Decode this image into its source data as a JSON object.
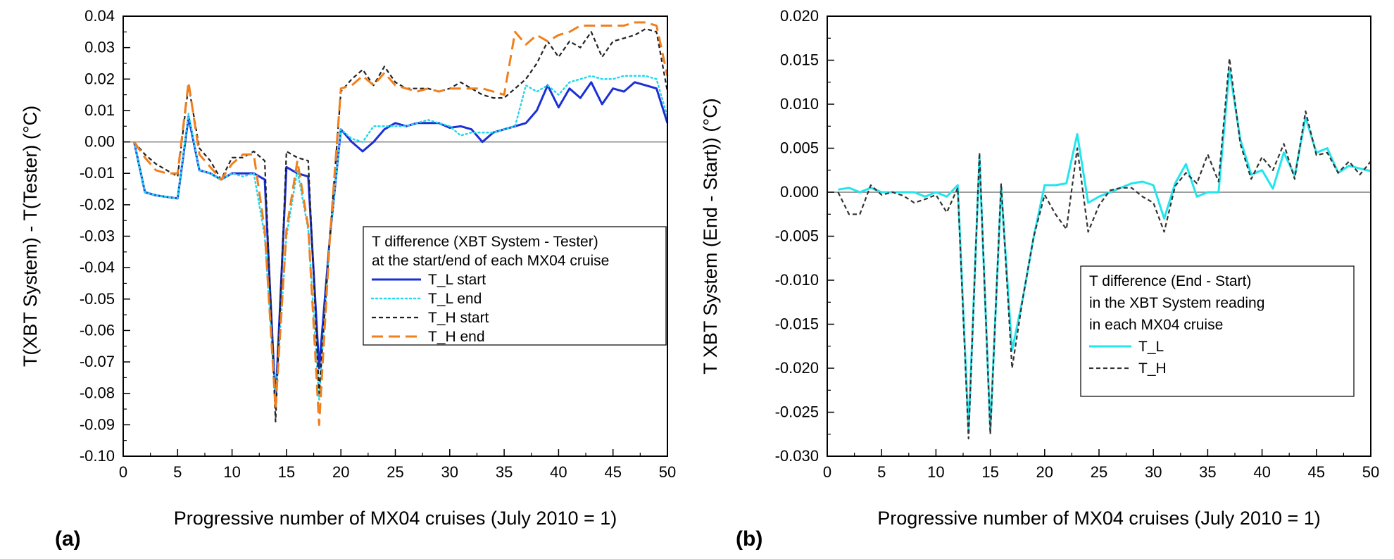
{
  "panels": [
    {
      "letter": "(a)"
    },
    {
      "letter": "(b)"
    }
  ],
  "chart_data": [
    {
      "type": "line",
      "xlabel": "Progressive number of MX04 cruises (July 2010 = 1)",
      "ylabel": "T(XBT System) - T(Tester)  (°C)",
      "xlim": [
        0,
        50
      ],
      "ylim": [
        -0.1,
        0.04
      ],
      "x_ticks": [
        "0",
        "5",
        "10",
        "15",
        "20",
        "25",
        "30",
        "35",
        "40",
        "45",
        "50"
      ],
      "y_ticks": [
        "0.04",
        "0.03",
        "0.02",
        "0.01",
        "0.00",
        "-0.01",
        "-0.02",
        "-0.03",
        "-0.04",
        "-0.05",
        "-0.06",
        "-0.07",
        "-0.08",
        "-0.09",
        "-0.10"
      ],
      "reference_line": 0,
      "grid": false,
      "legend_position": "right",
      "legend_title": [
        "T difference (XBT System - Tester)",
        "at the start/end of each MX04 cruise"
      ],
      "x": [
        1,
        2,
        3,
        4,
        5,
        6,
        7,
        8,
        9,
        10,
        11,
        12,
        13,
        14,
        15,
        16,
        17,
        18,
        19,
        20,
        21,
        22,
        23,
        24,
        25,
        26,
        27,
        28,
        29,
        30,
        31,
        32,
        33,
        34,
        35,
        36,
        37,
        38,
        39,
        40,
        41,
        42,
        43,
        44,
        45,
        46,
        47,
        48,
        49,
        50
      ],
      "series": [
        {
          "name": "T_L start",
          "color": "#1a2fd6",
          "dash": "solid",
          "values": [
            0.0,
            -0.016,
            -0.017,
            -0.0175,
            -0.018,
            0.008,
            -0.009,
            -0.01,
            -0.012,
            -0.01,
            -0.01,
            -0.01,
            -0.012,
            -0.083,
            -0.008,
            -0.01,
            -0.011,
            -0.072,
            -0.03,
            0.004,
            0.0,
            -0.003,
            0.0,
            0.004,
            0.006,
            0.005,
            0.006,
            0.006,
            0.006,
            0.0045,
            0.005,
            0.004,
            0.0,
            0.003,
            0.004,
            0.005,
            0.006,
            0.01,
            0.018,
            0.011,
            0.017,
            0.014,
            0.019,
            0.012,
            0.017,
            0.016,
            0.019,
            0.018,
            0.017,
            0.006
          ]
        },
        {
          "name": "T_L end",
          "color": "#22d8ee",
          "dash": "dotted",
          "values": [
            0.0,
            -0.016,
            -0.017,
            -0.0175,
            -0.018,
            0.009,
            -0.009,
            -0.01,
            -0.012,
            -0.01,
            -0.011,
            -0.01,
            -0.03,
            -0.082,
            -0.03,
            -0.009,
            -0.028,
            -0.082,
            -0.03,
            0.004,
            0.001,
            0.0,
            0.005,
            0.005,
            0.005,
            0.005,
            0.006,
            0.007,
            0.006,
            0.005,
            0.002,
            0.003,
            0.003,
            0.003,
            0.004,
            0.005,
            0.018,
            0.016,
            0.018,
            0.015,
            0.019,
            0.02,
            0.021,
            0.02,
            0.02,
            0.021,
            0.021,
            0.021,
            0.02,
            0.008
          ]
        },
        {
          "name": "T_H start",
          "color": "#222222",
          "dash": "short-dash",
          "values": [
            0.0,
            -0.004,
            -0.007,
            -0.009,
            -0.011,
            0.018,
            -0.002,
            -0.006,
            -0.012,
            -0.005,
            -0.005,
            -0.003,
            -0.006,
            -0.089,
            -0.003,
            -0.005,
            -0.006,
            -0.08,
            -0.03,
            0.016,
            0.02,
            0.023,
            0.018,
            0.024,
            0.019,
            0.017,
            0.017,
            0.017,
            0.016,
            0.017,
            0.019,
            0.017,
            0.015,
            0.014,
            0.014,
            0.017,
            0.02,
            0.025,
            0.032,
            0.027,
            0.032,
            0.03,
            0.035,
            0.027,
            0.032,
            0.033,
            0.034,
            0.036,
            0.035,
            0.016
          ]
        },
        {
          "name": "T_H end",
          "color": "#f07f1c",
          "dash": "long-dash",
          "values": [
            0.0,
            -0.005,
            -0.009,
            -0.01,
            -0.01,
            0.019,
            -0.004,
            -0.008,
            -0.012,
            -0.007,
            -0.004,
            -0.004,
            -0.028,
            -0.085,
            -0.028,
            -0.006,
            -0.027,
            -0.09,
            -0.03,
            0.017,
            0.018,
            0.021,
            0.018,
            0.022,
            0.018,
            0.017,
            0.016,
            0.017,
            0.016,
            0.017,
            0.017,
            0.017,
            0.017,
            0.016,
            0.015,
            0.035,
            0.031,
            0.034,
            0.032,
            0.034,
            0.035,
            0.037,
            0.037,
            0.037,
            0.037,
            0.037,
            0.038,
            0.038,
            0.037,
            0.021
          ]
        }
      ]
    },
    {
      "type": "line",
      "xlabel": "Progressive number of MX04 cruises (July 2010 = 1)",
      "ylabel": "T XBT System (End - Start))  (°C)",
      "xlim": [
        0,
        50
      ],
      "ylim": [
        -0.03,
        0.02
      ],
      "x_ticks": [
        "0",
        "5",
        "10",
        "15",
        "20",
        "25",
        "30",
        "35",
        "40",
        "45",
        "50"
      ],
      "y_ticks": [
        "0.020",
        "0.015",
        "0.010",
        "0.005",
        "0.000",
        "-0.005",
        "-0.010",
        "-0.015",
        "-0.020",
        "-0.025",
        "-0.030"
      ],
      "reference_line": 0,
      "grid": false,
      "legend_position": "lower-right",
      "legend_title": [
        "T difference (End - Start)",
        "in the XBT System reading",
        "in each MX04 cruise"
      ],
      "x": [
        1,
        2,
        3,
        4,
        5,
        6,
        7,
        8,
        9,
        10,
        11,
        12,
        13,
        14,
        15,
        16,
        17,
        18,
        19,
        20,
        21,
        22,
        23,
        24,
        25,
        26,
        27,
        28,
        29,
        30,
        31,
        32,
        33,
        34,
        35,
        36,
        37,
        38,
        39,
        40,
        41,
        42,
        43,
        44,
        45,
        46,
        47,
        48,
        49,
        50
      ],
      "series": [
        {
          "name": "T_L",
          "color": "#22e5ee",
          "dash": "solid",
          "values": [
            0.0003,
            0.0005,
            0.0,
            0.0005,
            0.0,
            0.0,
            0.0,
            0.0,
            -0.0005,
            0.0,
            -0.0005,
            0.0008,
            -0.027,
            0.004,
            -0.027,
            0.0005,
            -0.018,
            -0.012,
            -0.005,
            0.0008,
            0.0008,
            0.001,
            0.0066,
            -0.0012,
            -0.0005,
            0.0,
            0.0005,
            0.001,
            0.0012,
            0.0008,
            -0.003,
            0.001,
            0.0032,
            -0.0005,
            0.0,
            0.0,
            0.014,
            0.006,
            0.002,
            0.0025,
            0.0004,
            0.0045,
            0.0019,
            0.0085,
            0.0045,
            0.005,
            0.0022,
            0.003,
            0.0027,
            0.0024
          ]
        },
        {
          "name": "T_H",
          "color": "#333333",
          "dash": "short-dash",
          "values": [
            0.0,
            -0.0025,
            -0.0025,
            0.0008,
            -0.0003,
            0.0,
            -0.0004,
            -0.0012,
            -0.0008,
            -0.0003,
            -0.0023,
            0.0005,
            -0.028,
            0.0045,
            -0.0275,
            0.001,
            -0.02,
            -0.012,
            -0.005,
            -0.0003,
            -0.0025,
            -0.0042,
            0.005,
            -0.0045,
            -0.0015,
            0.0002,
            0.0005,
            0.0005,
            -0.0005,
            -0.0012,
            -0.0045,
            0.0007,
            0.0022,
            0.001,
            0.0043,
            0.0012,
            0.0152,
            0.0055,
            0.0015,
            0.004,
            0.0025,
            0.0055,
            0.0015,
            0.0092,
            0.0042,
            0.0045,
            0.0022,
            0.0035,
            0.002,
            0.0035
          ]
        }
      ]
    }
  ]
}
